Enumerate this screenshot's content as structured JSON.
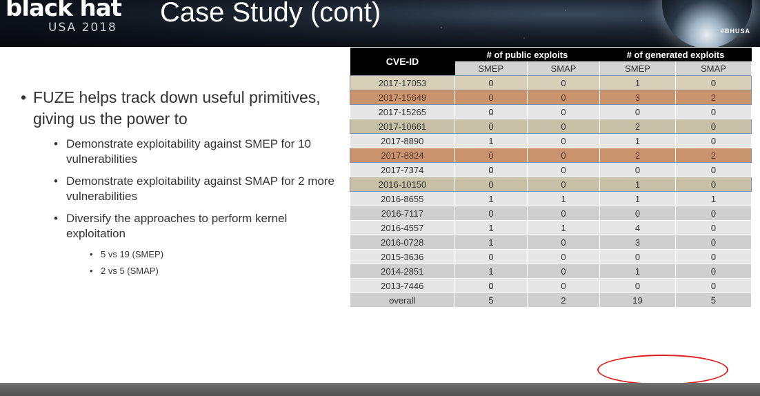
{
  "header": {
    "logo_word": "black hat",
    "logo_sub": "USA 2018",
    "title": "Case Study (cont)",
    "hashtag": "#BHUSA"
  },
  "bullets": {
    "main": "FUZE helps track down useful primitives, giving us the power to",
    "sub1": "Demonstrate exploitability against SMEP for 10 vulnerabilities",
    "sub2": "Demonstrate exploitability against SMAP for 2 more vulnerabilities",
    "sub3": "Diversify the approaches to perform kernel exploitation",
    "subsub1": "5 vs 19 (SMEP)",
    "subsub2": "2 vs 5 (SMAP)"
  },
  "table": {
    "col_cve": "CVE-ID",
    "group_public": "# of public exploits",
    "group_generated": "# of generated exploits",
    "sub_labels": [
      "SMEP",
      "SMAP",
      "SMEP",
      "SMAP"
    ],
    "rows": [
      {
        "cve": "2017-17053",
        "pub_smep": "0",
        "pub_smap": "0",
        "gen_smep": "1",
        "gen_smap": "0",
        "style": "tan"
      },
      {
        "cve": "2017-15649",
        "pub_smep": "0",
        "pub_smap": "0",
        "gen_smep": "3",
        "gen_smap": "2",
        "style": "orange"
      },
      {
        "cve": "2017-15265",
        "pub_smep": "0",
        "pub_smap": "0",
        "gen_smep": "0",
        "gen_smap": "0",
        "style": "light"
      },
      {
        "cve": "2017-10661",
        "pub_smep": "0",
        "pub_smap": "0",
        "gen_smep": "2",
        "gen_smap": "0",
        "style": "olive"
      },
      {
        "cve": "2017-8890",
        "pub_smep": "1",
        "pub_smap": "0",
        "gen_smep": "1",
        "gen_smap": "0",
        "style": "light"
      },
      {
        "cve": "2017-8824",
        "pub_smep": "0",
        "pub_smap": "0",
        "gen_smep": "2",
        "gen_smap": "2",
        "style": "orange"
      },
      {
        "cve": "2017-7374",
        "pub_smep": "0",
        "pub_smap": "0",
        "gen_smep": "0",
        "gen_smap": "0",
        "style": "light"
      },
      {
        "cve": "2016-10150",
        "pub_smep": "0",
        "pub_smap": "0",
        "gen_smep": "1",
        "gen_smap": "0",
        "style": "olive"
      },
      {
        "cve": "2016-8655",
        "pub_smep": "1",
        "pub_smap": "1",
        "gen_smep": "1",
        "gen_smap": "1",
        "style": "light"
      },
      {
        "cve": "2016-7117",
        "pub_smep": "0",
        "pub_smap": "0",
        "gen_smep": "0",
        "gen_smap": "0",
        "style": "dark"
      },
      {
        "cve": "2016-4557",
        "pub_smep": "1",
        "pub_smap": "1",
        "gen_smep": "4",
        "gen_smap": "0",
        "style": "light"
      },
      {
        "cve": "2016-0728",
        "pub_smep": "1",
        "pub_smap": "0",
        "gen_smep": "3",
        "gen_smap": "0",
        "style": "dark"
      },
      {
        "cve": "2015-3636",
        "pub_smep": "0",
        "pub_smap": "0",
        "gen_smep": "0",
        "gen_smap": "0",
        "style": "light"
      },
      {
        "cve": "2014-2851",
        "pub_smep": "1",
        "pub_smap": "0",
        "gen_smep": "1",
        "gen_smap": "0",
        "style": "dark"
      },
      {
        "cve": "2013-7446",
        "pub_smep": "0",
        "pub_smap": "0",
        "gen_smep": "0",
        "gen_smap": "0",
        "style": "light"
      },
      {
        "cve": "overall",
        "pub_smep": "5",
        "pub_smap": "2",
        "gen_smep": "19",
        "gen_smap": "5",
        "style": "dark"
      }
    ]
  },
  "colors": {
    "highlight_circle": "#e02020",
    "header_bg": "#000000",
    "orange_row": "#c9936e",
    "tan_row": "#d7cfb7"
  }
}
